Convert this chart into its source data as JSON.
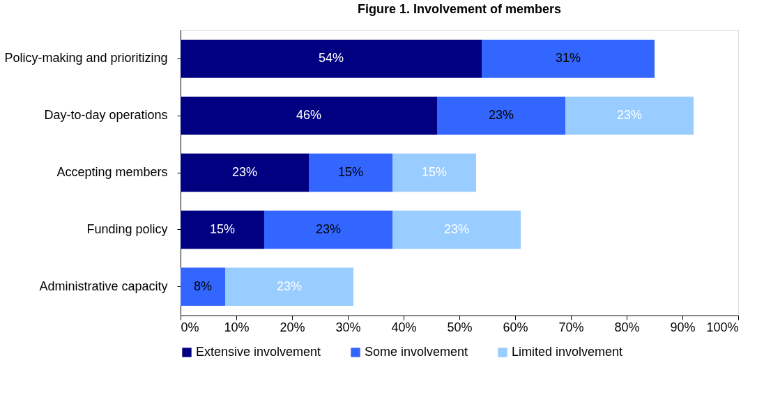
{
  "chart_data": {
    "type": "bar",
    "orientation": "horizontal",
    "stacked": true,
    "title": "Figure 1. Involvement of members",
    "categories": [
      "Policy-making and prioritizing",
      "Day-to-day operations",
      "Accepting members",
      "Funding policy",
      "Administrative capacity"
    ],
    "series": [
      {
        "name": "Extensive involvement",
        "color": "#000080",
        "values": [
          54,
          46,
          23,
          15,
          null
        ],
        "value_labels": [
          "54%",
          "46%",
          "23%",
          "15%",
          null
        ]
      },
      {
        "name": "Some involvement",
        "color": "#3366ff",
        "values": [
          31,
          23,
          15,
          23,
          8
        ],
        "value_labels": [
          "31%",
          "23%",
          "15%",
          "23%",
          "8%"
        ]
      },
      {
        "name": "Limited involvement",
        "color": "#99ccff",
        "values": [
          null,
          23,
          15,
          23,
          23
        ],
        "value_labels": [
          null,
          "23%",
          "15%",
          "23%",
          "23%"
        ]
      }
    ],
    "xlim": [
      0,
      100
    ],
    "xticks": [
      {
        "value": 0,
        "label": "0%"
      },
      {
        "value": 10,
        "label": "10%"
      },
      {
        "value": 20,
        "label": "20%"
      },
      {
        "value": 30,
        "label": "30%"
      },
      {
        "value": 40,
        "label": "40%"
      },
      {
        "value": 50,
        "label": "50%"
      },
      {
        "value": 60,
        "label": "60%"
      },
      {
        "value": 70,
        "label": "70%"
      },
      {
        "value": 80,
        "label": "80%"
      },
      {
        "value": 90,
        "label": "90%"
      },
      {
        "value": 100,
        "label": "100%"
      }
    ],
    "legend": "bottom",
    "grid": false
  }
}
